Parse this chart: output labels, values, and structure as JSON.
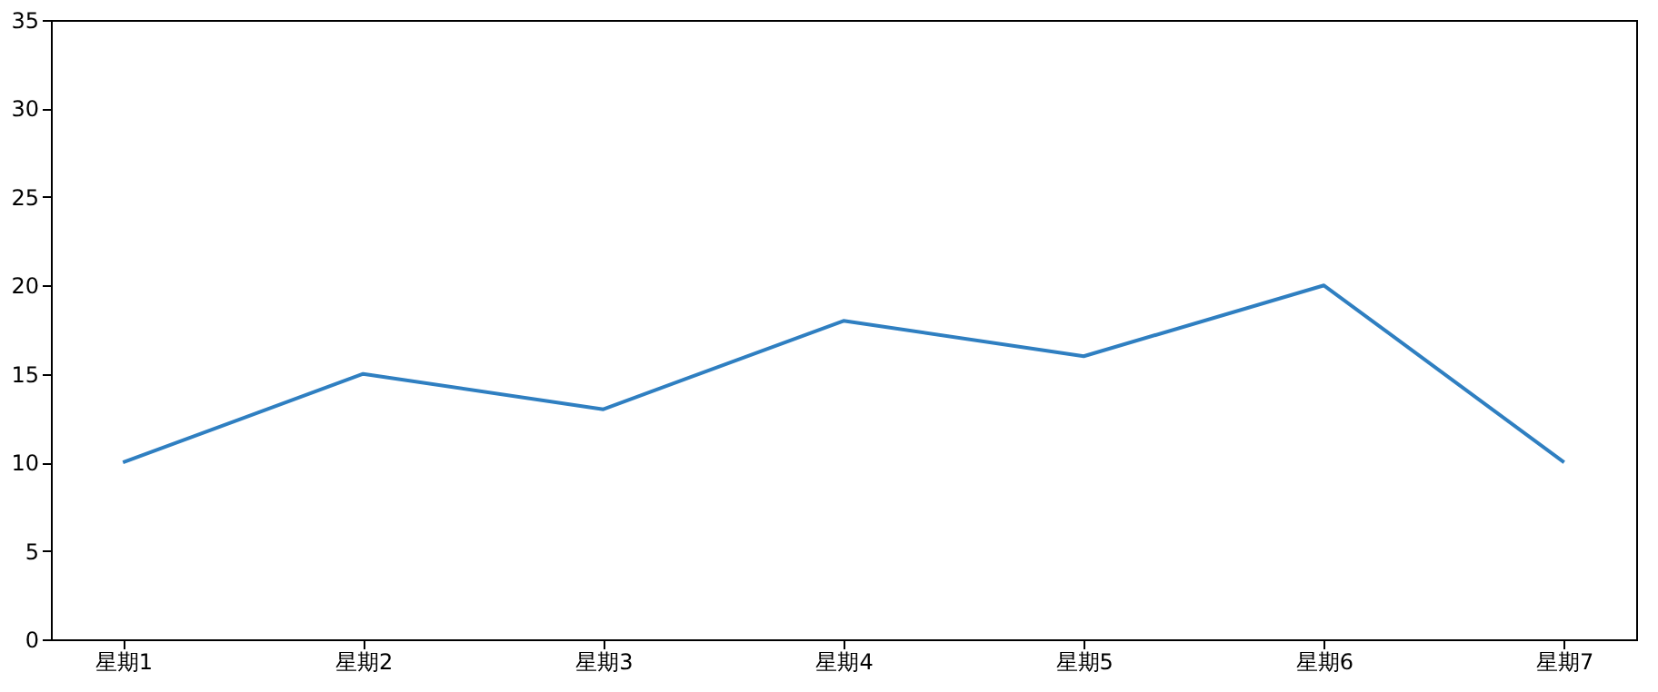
{
  "chart_data": {
    "type": "line",
    "categories": [
      "星期1",
      "星期2",
      "星期3",
      "星期4",
      "星期5",
      "星期6",
      "星期7"
    ],
    "series": [
      {
        "color": "#2f7fc1",
        "values": [
          10,
          15,
          13,
          18,
          16,
          20,
          10
        ]
      }
    ],
    "ylim": [
      0,
      35
    ],
    "yticks": [
      0,
      5,
      10,
      15,
      20,
      25,
      30,
      35
    ],
    "grid": false
  }
}
